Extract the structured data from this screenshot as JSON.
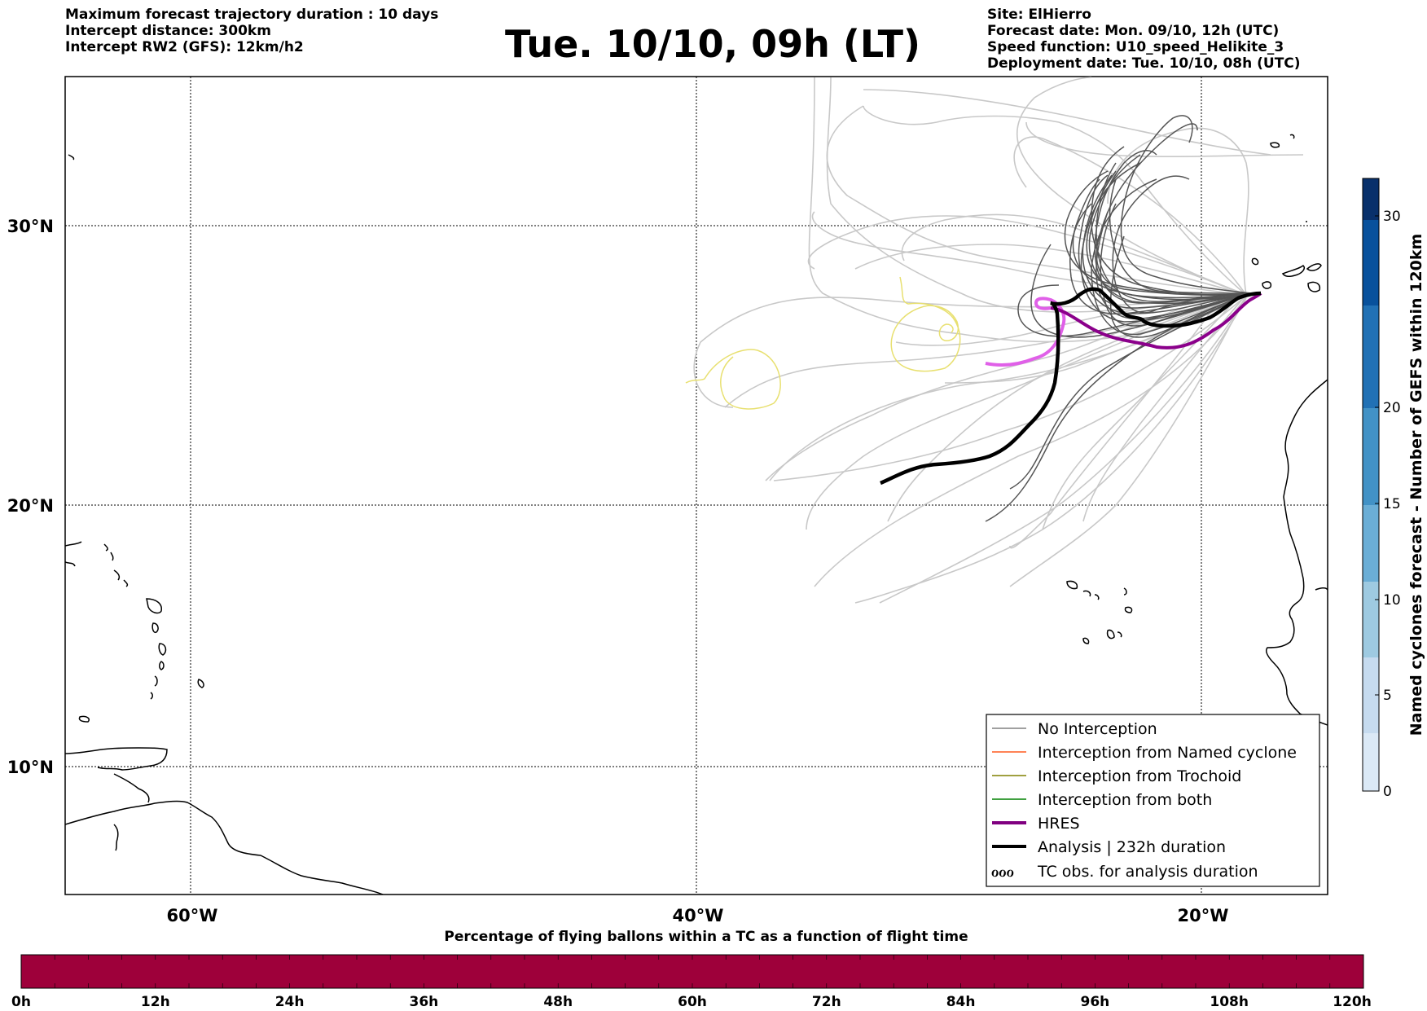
{
  "header": {
    "left_lines": [
      "Maximum forecast trajectory duration : 10 days",
      "Intercept distance: 300km",
      "Intercept RW2 (GFS):  12km/h2"
    ],
    "title": "Tue. 10/10, 09h (LT)",
    "right_lines": [
      "Site: ElHierro",
      "Forecast date: Mon. 09/10, 12h (UTC)",
      "Speed function: U10_speed_Helikite_3",
      "Deployment date: Tue. 10/10, 08h (UTC)"
    ]
  },
  "map": {
    "lat_labels": [
      "30°N",
      "20°N",
      "10°N"
    ],
    "lon_labels": [
      "60°W",
      "40°W",
      "20°W"
    ],
    "legend": {
      "items": [
        {
          "label": "No Interception",
          "color": "#808080"
        },
        {
          "label": "Interception from Named cyclone",
          "color": "#ff5a1e"
        },
        {
          "label": "Interception from Trochoid",
          "color": "#808000"
        },
        {
          "label": "Interception from both",
          "color": "#008000"
        },
        {
          "label": "HRES",
          "color": "#800080"
        },
        {
          "label": "Analysis | 232h duration",
          "color": "#000000"
        },
        {
          "label": "TC obs. for analysis duration",
          "color": "#000000"
        }
      ],
      "tc_symbol": "ℴℴℴ"
    },
    "colors": {
      "ensemble_dark": "#555555",
      "ensemble_light": "#c8c8c8",
      "hres": "#8b008b",
      "hres_light": "#e060e8",
      "analysis": "#000000",
      "tc_obs": "#e8e070",
      "coast": "#000000"
    }
  },
  "colorbar": {
    "label": "Named cyclones forecast - Number of GEFS within 120km",
    "ticks": [
      "0",
      "5",
      "10",
      "15",
      "20",
      "30"
    ],
    "colors": [
      "#dbe9f6",
      "#c6dbef",
      "#9ecae1",
      "#6baed6",
      "#4292c6",
      "#2171b5",
      "#08519c",
      "#08306b"
    ]
  },
  "bottom_bar": {
    "title": "Percentage of flying ballons within a TC as a function of flight time",
    "ticks": [
      "0h",
      "12h",
      "24h",
      "36h",
      "48h",
      "60h",
      "72h",
      "84h",
      "96h",
      "108h",
      "120h"
    ],
    "color": "#9e003a"
  }
}
